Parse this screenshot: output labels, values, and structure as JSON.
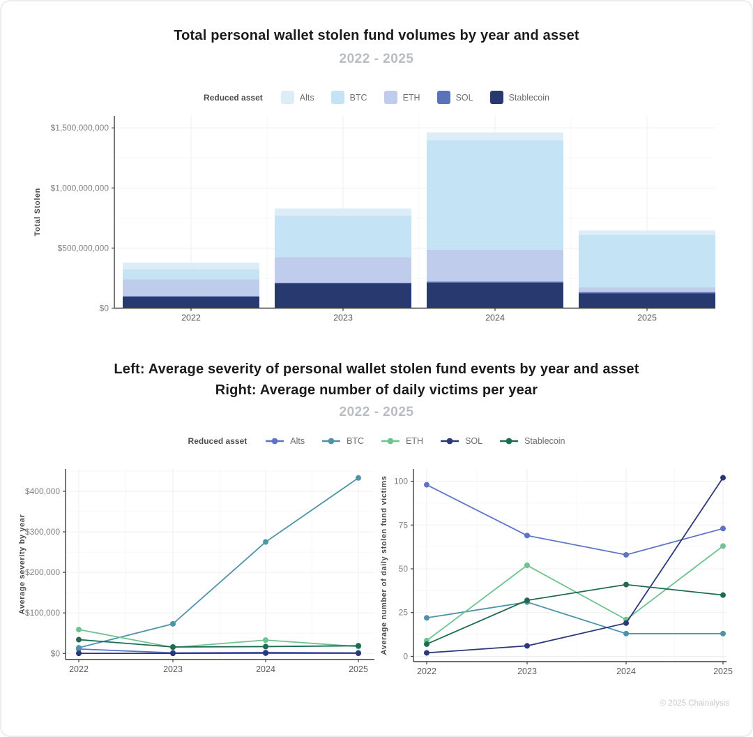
{
  "page": {
    "footer": "© 2025 Chainalysis"
  },
  "top_chart": {
    "title": "Total personal wallet stolen fund volumes by year and asset",
    "subtitle": "2022 - 2025",
    "legend_title": "Reduced asset",
    "legend": [
      {
        "label": "Alts",
        "color": "#dcedf8"
      },
      {
        "label": "BTC",
        "color": "#c4e3f5"
      },
      {
        "label": "ETH",
        "color": "#c0cceb"
      },
      {
        "label": "SOL",
        "color": "#5a73b8"
      },
      {
        "label": "Stablecoin",
        "color": "#27396e"
      }
    ]
  },
  "bottom_charts": {
    "title_line1": "Left: Average severity of personal wallet stolen fund events by year and asset",
    "title_line2": "Right: Average number of daily victims per year",
    "subtitle": "2022 - 2025",
    "legend_title": "Reduced asset",
    "legend": [
      {
        "label": "Alts",
        "color": "#5e73c6"
      },
      {
        "label": "BTC",
        "color": "#4f93a8"
      },
      {
        "label": "ETH",
        "color": "#6fc391"
      },
      {
        "label": "SOL",
        "color": "#2a3878"
      },
      {
        "label": "Stablecoin",
        "color": "#1d6b52"
      }
    ]
  },
  "chart_data": [
    {
      "type": "bar",
      "stacked": true,
      "title": "Total personal wallet stolen fund volumes by year and asset",
      "subtitle": "2022 - 2025",
      "categories": [
        "2022",
        "2023",
        "2024",
        "2025"
      ],
      "series": [
        {
          "name": "Stablecoin",
          "color": "#27396e",
          "values": [
            96000000,
            207000000,
            213000000,
            122000000
          ]
        },
        {
          "name": "SOL",
          "color": "#5a73b8",
          "values": [
            3000000,
            4000000,
            8000000,
            12000000
          ]
        },
        {
          "name": "ETH",
          "color": "#c0cceb",
          "values": [
            139000000,
            214000000,
            264000000,
            40000000
          ]
        },
        {
          "name": "BTC",
          "color": "#c4e3f5",
          "values": [
            86000000,
            346000000,
            913000000,
            437000000
          ]
        },
        {
          "name": "Alts",
          "color": "#dcedf8",
          "values": [
            54000000,
            58000000,
            64000000,
            35000000
          ]
        }
      ],
      "xlabel": "",
      "ylabel": "Total Stolen",
      "ylim": [
        0,
        1600000000
      ],
      "grid": true,
      "legend_position": "top",
      "yticks": [
        {
          "v": 0,
          "label": "$0"
        },
        {
          "v": 500000000,
          "label": "$500,000,000"
        },
        {
          "v": 1000000000,
          "label": "$1,000,000,000"
        },
        {
          "v": 1500000000,
          "label": "$1,500,000,000"
        }
      ]
    },
    {
      "type": "line",
      "title": "Average severity of personal wallet stolen fund events by year and asset",
      "subtitle": "2022 - 2025",
      "categories": [
        "2022",
        "2023",
        "2024",
        "2025"
      ],
      "series": [
        {
          "name": "Alts",
          "color": "#5e73c6",
          "values": [
            11000,
            1500,
            2500,
            1500
          ]
        },
        {
          "name": "BTC",
          "color": "#4f93a8",
          "values": [
            14000,
            73000,
            275000,
            433000
          ]
        },
        {
          "name": "ETH",
          "color": "#6fc391",
          "values": [
            59000,
            15000,
            33000,
            17000
          ]
        },
        {
          "name": "SOL",
          "color": "#2a3878",
          "values": [
            300,
            300,
            800,
            500
          ]
        },
        {
          "name": "Stablecoin",
          "color": "#1d6b52",
          "values": [
            34000,
            16000,
            17000,
            19000
          ]
        }
      ],
      "xlabel": "",
      "ylabel": "Average severity by year",
      "ylim": [
        -15000,
        455000
      ],
      "grid": true,
      "legend_position": "top",
      "yticks": [
        {
          "v": 0,
          "label": "$0"
        },
        {
          "v": 100000,
          "label": "$100,000"
        },
        {
          "v": 200000,
          "label": "$200,000"
        },
        {
          "v": 300000,
          "label": "$300,000"
        },
        {
          "v": 400000,
          "label": "$400,000"
        }
      ]
    },
    {
      "type": "line",
      "title": "Average number of daily victims per year",
      "subtitle": "2022 - 2025",
      "categories": [
        "2022",
        "2023",
        "2024",
        "2025"
      ],
      "series": [
        {
          "name": "Alts",
          "color": "#5e73c6",
          "values": [
            98,
            69,
            58,
            73
          ]
        },
        {
          "name": "BTC",
          "color": "#4f93a8",
          "values": [
            22,
            31,
            13,
            13
          ]
        },
        {
          "name": "ETH",
          "color": "#6fc391",
          "values": [
            9,
            52,
            21,
            63
          ]
        },
        {
          "name": "SOL",
          "color": "#2a3878",
          "values": [
            2,
            6,
            19,
            102
          ]
        },
        {
          "name": "Stablecoin",
          "color": "#1d6b52",
          "values": [
            7,
            32,
            41,
            35
          ]
        }
      ],
      "xlabel": "",
      "ylabel": "Average number of daily stolen fund victims",
      "ylim": [
        -3,
        107
      ],
      "grid": true,
      "legend_position": "top",
      "yticks": [
        {
          "v": 0,
          "label": "0"
        },
        {
          "v": 25,
          "label": "25"
        },
        {
          "v": 50,
          "label": "50"
        },
        {
          "v": 75,
          "label": "75"
        },
        {
          "v": 100,
          "label": "100"
        }
      ]
    }
  ]
}
